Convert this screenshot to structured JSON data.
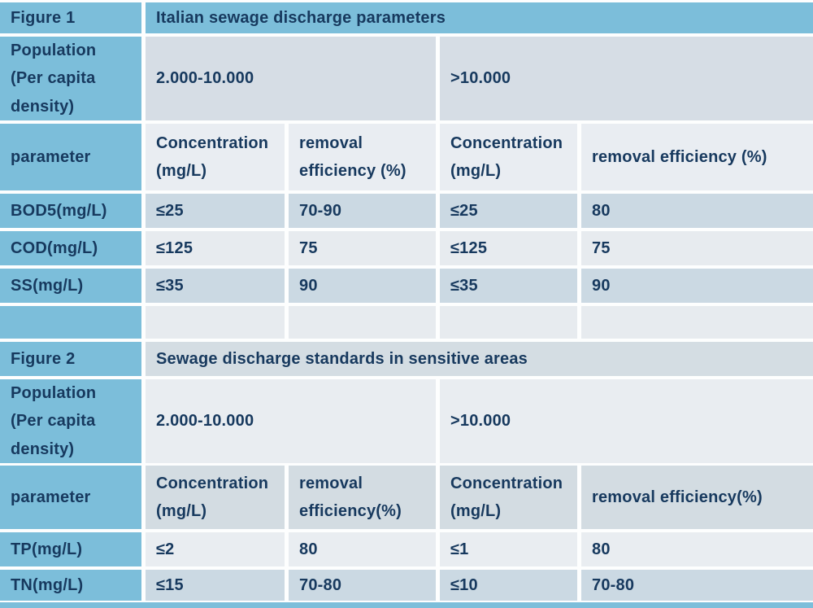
{
  "figure1": {
    "label": "Figure 1",
    "title": "Italian sewage discharge parameters",
    "population": {
      "lines": [
        "Population",
        "(Per capita",
        "density)"
      ],
      "ranges": [
        "2.000-10.000",
        ">10.000"
      ]
    },
    "parameter_label": "parameter",
    "headers": {
      "c1": [
        "Concentration",
        "(mg/L)"
      ],
      "c2": [
        "removal",
        "efficiency (%)"
      ],
      "c3": [
        "Concentration",
        "(mg/L)"
      ],
      "c4": "removal efficiency (%)"
    },
    "rows": [
      {
        "param": "BOD5(mg/L)",
        "values": [
          "≤25",
          "70-90",
          "≤25",
          "80"
        ]
      },
      {
        "param": "COD(mg/L)",
        "values": [
          "≤125",
          "75",
          "≤125",
          "75"
        ]
      },
      {
        "param": "SS(mg/L)",
        "values": [
          "≤35",
          "90",
          "≤35",
          "90"
        ]
      }
    ]
  },
  "figure2": {
    "label": "Figure 2",
    "title": "Sewage discharge standards in sensitive areas",
    "population": {
      "lines": [
        "Population",
        "(Per capita",
        "density)"
      ],
      "ranges": [
        "2.000-10.000",
        ">10.000"
      ]
    },
    "parameter_label": "parameter",
    "headers": {
      "c1": [
        "Concentration",
        "(mg/L)"
      ],
      "c2": [
        "removal",
        "efficiency(%)"
      ],
      "c3": [
        "Concentration",
        "(mg/L)"
      ],
      "c4": "removal efficiency(%)"
    },
    "rows": [
      {
        "param": "TP(mg/L)",
        "values": [
          "≤2",
          "80",
          "≤1",
          "80"
        ]
      },
      {
        "param": "TN(mg/L)",
        "values": [
          "≤15",
          "70-80",
          "≤10",
          "70-80"
        ]
      }
    ]
  },
  "colors": {
    "header_blue": "#7cbeda",
    "row_dark": "#cbd9e3",
    "row_light": "#e7ebef",
    "text_navy": "#17395e"
  }
}
